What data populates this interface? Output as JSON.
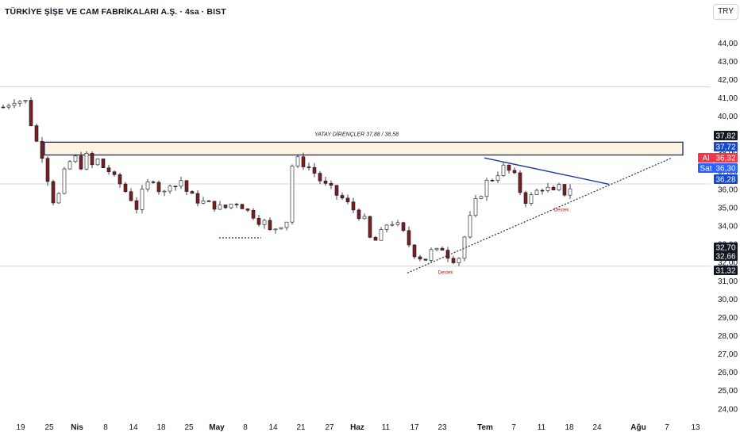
{
  "header": {
    "title": "TÜRKİYE ŞİŞE VE CAM FABRİKALARI A.Ş. · 4sa · BIST",
    "currency": "TRY"
  },
  "chart_data": {
    "type": "candlestick",
    "ylim": [
      23.6,
      45.4
    ],
    "y_ticks": [
      "24,00",
      "25,00",
      "26,00",
      "27,00",
      "28,00",
      "29,00",
      "30,00",
      "31,00",
      "32,00",
      "33,00",
      "34,00",
      "35,00",
      "36,00",
      "37,00",
      "38,00",
      "39,00",
      "40,00",
      "41,00",
      "42,00",
      "43,00",
      "44,00"
    ],
    "x_ticks": [
      {
        "label": "19",
        "bold": false
      },
      {
        "label": "25",
        "bold": false
      },
      {
        "label": "Nis",
        "bold": true
      },
      {
        "label": "8",
        "bold": false
      },
      {
        "label": "14",
        "bold": false
      },
      {
        "label": "18",
        "bold": false
      },
      {
        "label": "25",
        "bold": false
      },
      {
        "label": "May",
        "bold": true
      },
      {
        "label": "8",
        "bold": false
      },
      {
        "label": "14",
        "bold": false
      },
      {
        "label": "21",
        "bold": false
      },
      {
        "label": "27",
        "bold": false
      },
      {
        "label": "Haz",
        "bold": true
      },
      {
        "label": "11",
        "bold": false
      },
      {
        "label": "17",
        "bold": false
      },
      {
        "label": "23",
        "bold": false
      },
      {
        "label": "Tem",
        "bold": true
      },
      {
        "label": "7",
        "bold": false
      },
      {
        "label": "11",
        "bold": false
      },
      {
        "label": "18",
        "bold": false
      },
      {
        "label": "24",
        "bold": false
      },
      {
        "label": "Ağu",
        "bold": true
      },
      {
        "label": "7",
        "bold": false
      },
      {
        "label": "13",
        "bold": false
      }
    ],
    "x_range": [
      0,
      124
    ],
    "price_path": [
      [
        0,
        40.5
      ],
      [
        2,
        40.9
      ],
      [
        4,
        40.8
      ],
      [
        5,
        39.6
      ],
      [
        6,
        38.6
      ],
      [
        7,
        37.9
      ],
      [
        8,
        36.6
      ],
      [
        9,
        35.4
      ],
      [
        10,
        35.7
      ],
      [
        11,
        36.9
      ],
      [
        12,
        37.5
      ],
      [
        13,
        37.7
      ],
      [
        14,
        37.3
      ],
      [
        15,
        37.8
      ],
      [
        16,
        37.3
      ],
      [
        17,
        37.6
      ],
      [
        18,
        37.2
      ],
      [
        19,
        37.0
      ],
      [
        20,
        36.6
      ],
      [
        21,
        36.3
      ],
      [
        22,
        35.9
      ],
      [
        23,
        35.5
      ],
      [
        24,
        35.0
      ],
      [
        25,
        35.8
      ],
      [
        26,
        36.3
      ],
      [
        27,
        36.6
      ],
      [
        28,
        36.0
      ],
      [
        29,
        35.8
      ],
      [
        30,
        36.4
      ],
      [
        31,
        36.2
      ],
      [
        32,
        36.5
      ],
      [
        33,
        35.9
      ],
      [
        34,
        35.6
      ],
      [
        35,
        35.4
      ],
      [
        36,
        35.3
      ],
      [
        37,
        35.2
      ],
      [
        38,
        35.1
      ],
      [
        39,
        35.0
      ],
      [
        40,
        35.0
      ],
      [
        41,
        35.2
      ],
      [
        42,
        35.3
      ],
      [
        43,
        35.1
      ],
      [
        44,
        34.8
      ],
      [
        45,
        34.6
      ],
      [
        46,
        34.3
      ],
      [
        47,
        34.2
      ],
      [
        48,
        33.7
      ],
      [
        49,
        33.9
      ],
      [
        50,
        34.1
      ],
      [
        51,
        34.3
      ],
      [
        52,
        37.3
      ],
      [
        53,
        37.6
      ],
      [
        54,
        37.4
      ],
      [
        55,
        37.2
      ],
      [
        56,
        36.9
      ],
      [
        57,
        36.5
      ],
      [
        58,
        36.2
      ],
      [
        59,
        36.0
      ],
      [
        60,
        35.7
      ],
      [
        61,
        35.5
      ],
      [
        62,
        35.2
      ],
      [
        63,
        34.9
      ],
      [
        64,
        34.6
      ],
      [
        65,
        34.3
      ],
      [
        66,
        33.3
      ],
      [
        67,
        33.2
      ],
      [
        68,
        33.6
      ],
      [
        69,
        34.1
      ],
      [
        70,
        34.2
      ],
      [
        71,
        34.0
      ],
      [
        72,
        33.6
      ],
      [
        73,
        33.0
      ],
      [
        74,
        32.5
      ],
      [
        75,
        32.3
      ],
      [
        76,
        32.2
      ],
      [
        77,
        32.6
      ],
      [
        78,
        32.6
      ],
      [
        79,
        32.8
      ],
      [
        80,
        32.4
      ],
      [
        81,
        32.2
      ],
      [
        82,
        32.3
      ],
      [
        83,
        33.4
      ],
      [
        84,
        34.4
      ],
      [
        85,
        35.3
      ],
      [
        86,
        35.8
      ],
      [
        87,
        36.4
      ],
      [
        88,
        36.6
      ],
      [
        89,
        36.9
      ],
      [
        90,
        37.2
      ],
      [
        91,
        37.0
      ],
      [
        92,
        36.7
      ],
      [
        93,
        35.9
      ],
      [
        94,
        35.4
      ],
      [
        95,
        35.6
      ],
      [
        96,
        35.9
      ],
      [
        97,
        36.1
      ],
      [
        98,
        36.0
      ],
      [
        99,
        35.8
      ],
      [
        100,
        36.1
      ],
      [
        101,
        35.8
      ],
      [
        102,
        36.1
      ]
    ],
    "annotations": {
      "zone_label": "YATAY DİRENÇLER 37,88 / 38,58",
      "support_labels": [
        "Destek",
        "Destek"
      ]
    },
    "price_tags": [
      {
        "value": "37,82",
        "bg": "#131722",
        "prefix": ""
      },
      {
        "value": "37,72",
        "bg": "#1848cc",
        "prefix": ""
      },
      {
        "value": "36,32",
        "bg": "#f23645",
        "prefix": "Al"
      },
      {
        "value": "36,30",
        "bg": "#2962ff",
        "prefix": "Sat"
      },
      {
        "value": "36,28",
        "bg": "#1848cc",
        "prefix": ""
      },
      {
        "value": "32,70",
        "bg": "#131722",
        "prefix": ""
      },
      {
        "value": "32,66",
        "bg": "#131722",
        "prefix": ""
      },
      {
        "value": "31,32",
        "bg": "#131722",
        "prefix": ""
      }
    ]
  },
  "colors": {
    "up": "#ffffff",
    "down": "#7a1f1f",
    "wick": "#131722",
    "zone_fill": "#fdf3e1",
    "zone_border": "#0d2a8a",
    "trend_line": "#1e3a9e"
  }
}
